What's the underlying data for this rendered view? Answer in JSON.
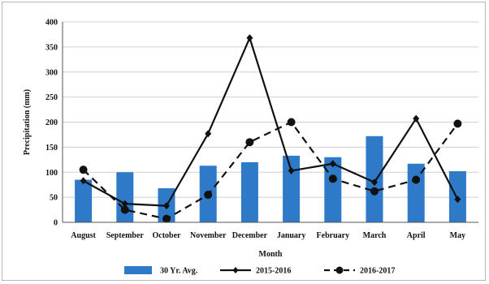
{
  "chart_data": {
    "type": "bar",
    "title": "",
    "xlabel": "Month",
    "ylabel": "Precipitation (mm)",
    "ylim": [
      0,
      400
    ],
    "yticks": [
      0,
      50,
      100,
      150,
      200,
      250,
      300,
      350,
      400
    ],
    "grid": "horizontal",
    "legend_position": "bottom",
    "categories": [
      "August",
      "September",
      "October",
      "November",
      "December",
      "January",
      "February",
      "March",
      "April",
      "May"
    ],
    "series": [
      {
        "name": "30 Yr. Avg.",
        "kind": "bar",
        "color": "#2f7ac8",
        "values": [
          85,
          100,
          68,
          113,
          120,
          133,
          130,
          172,
          117,
          102
        ]
      },
      {
        "name": "2015-2016",
        "kind": "line",
        "style": "solid",
        "marker": "diamond",
        "color": "#111111",
        "values": [
          83,
          37,
          33,
          177,
          368,
          103,
          117,
          80,
          207,
          46
        ]
      },
      {
        "name": "2016-2017",
        "kind": "line",
        "style": "dashed",
        "marker": "circle",
        "color": "#111111",
        "values": [
          105,
          25,
          7,
          55,
          160,
          200,
          87,
          62,
          85,
          197
        ]
      }
    ]
  }
}
